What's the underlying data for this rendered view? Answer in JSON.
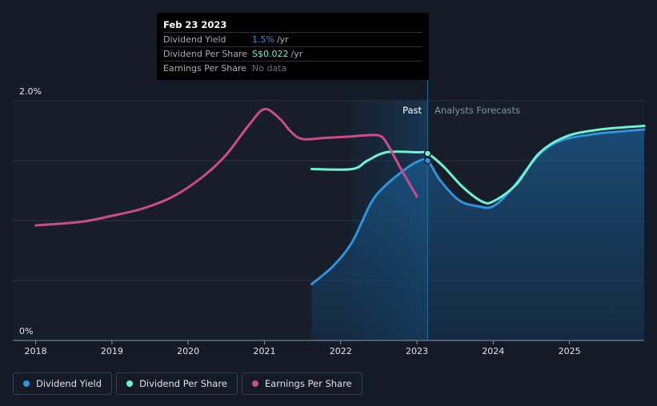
{
  "tooltip": {
    "date": "Feb 23 2023",
    "rows": [
      {
        "label": "Dividend Yield",
        "value": "1.5%",
        "unit": "/yr"
      },
      {
        "label": "Dividend Per Share",
        "value": "S$0.022",
        "unit": "/yr"
      },
      {
        "label": "Earnings Per Share",
        "value": "No data",
        "unit": ""
      }
    ]
  },
  "regions": {
    "past": "Past",
    "forecast": "Analysts Forecasts"
  },
  "legend": [
    {
      "label": "Dividend Yield",
      "color": "#2e94e0"
    },
    {
      "label": "Dividend Per Share",
      "color": "#6ff2d2"
    },
    {
      "label": "Earnings Per Share",
      "color": "#cc4b8d"
    }
  ],
  "chart_data": {
    "type": "line",
    "y_axis_labels": [
      "2.0%",
      "0%"
    ],
    "ylim": [
      0,
      2.0
    ],
    "xlim": [
      2017.7,
      2025.98
    ],
    "x_ticks": [
      2018,
      2019,
      2020,
      2021,
      2022,
      2023,
      2024,
      2025
    ],
    "grid": true,
    "divider_date": 2023.14,
    "highlight_start": 2022.14,
    "series": [
      {
        "name": "Dividend Yield",
        "color": "#2e94e0",
        "area": true,
        "points": [
          [
            2021.62,
            0.47
          ],
          [
            2021.9,
            0.62
          ],
          [
            2022.15,
            0.82
          ],
          [
            2022.4,
            1.15
          ],
          [
            2022.6,
            1.3
          ],
          [
            2022.85,
            1.43
          ],
          [
            2023.0,
            1.49
          ],
          [
            2023.14,
            1.5
          ],
          [
            2023.3,
            1.34
          ],
          [
            2023.55,
            1.17
          ],
          [
            2023.8,
            1.12
          ],
          [
            2024.0,
            1.12
          ],
          [
            2024.25,
            1.27
          ],
          [
            2024.6,
            1.55
          ],
          [
            2024.9,
            1.67
          ],
          [
            2025.3,
            1.72
          ],
          [
            2025.6,
            1.74
          ],
          [
            2025.98,
            1.76
          ]
        ]
      },
      {
        "name": "Dividend Per Share",
        "color": "#6ff2d2",
        "area": false,
        "points": [
          [
            2021.62,
            1.43
          ],
          [
            2022.15,
            1.43
          ],
          [
            2022.35,
            1.5
          ],
          [
            2022.6,
            1.57
          ],
          [
            2023.0,
            1.57
          ],
          [
            2023.14,
            1.56
          ],
          [
            2023.35,
            1.45
          ],
          [
            2023.6,
            1.28
          ],
          [
            2023.85,
            1.16
          ],
          [
            2024.0,
            1.16
          ],
          [
            2024.3,
            1.3
          ],
          [
            2024.6,
            1.56
          ],
          [
            2024.95,
            1.7
          ],
          [
            2025.4,
            1.76
          ],
          [
            2025.98,
            1.79
          ]
        ]
      },
      {
        "name": "Earnings Per Share",
        "color": "#cc4b8d",
        "area": false,
        "points": [
          [
            2018.0,
            0.96
          ],
          [
            2018.6,
            0.99
          ],
          [
            2019.0,
            1.04
          ],
          [
            2019.4,
            1.1
          ],
          [
            2019.8,
            1.2
          ],
          [
            2020.2,
            1.37
          ],
          [
            2020.5,
            1.55
          ],
          [
            2020.8,
            1.8
          ],
          [
            2021.0,
            1.93
          ],
          [
            2021.2,
            1.85
          ],
          [
            2021.35,
            1.74
          ],
          [
            2021.5,
            1.68
          ],
          [
            2021.8,
            1.69
          ],
          [
            2022.1,
            1.7
          ],
          [
            2022.3,
            1.71
          ],
          [
            2022.5,
            1.71
          ],
          [
            2022.6,
            1.65
          ],
          [
            2022.8,
            1.42
          ],
          [
            2023.0,
            1.2
          ]
        ]
      }
    ],
    "markers": [
      {
        "series": "Dividend Per Share",
        "x": 2023.14,
        "y": 1.56
      },
      {
        "series": "Dividend Yield",
        "x": 2023.14,
        "y": 1.5
      }
    ]
  }
}
